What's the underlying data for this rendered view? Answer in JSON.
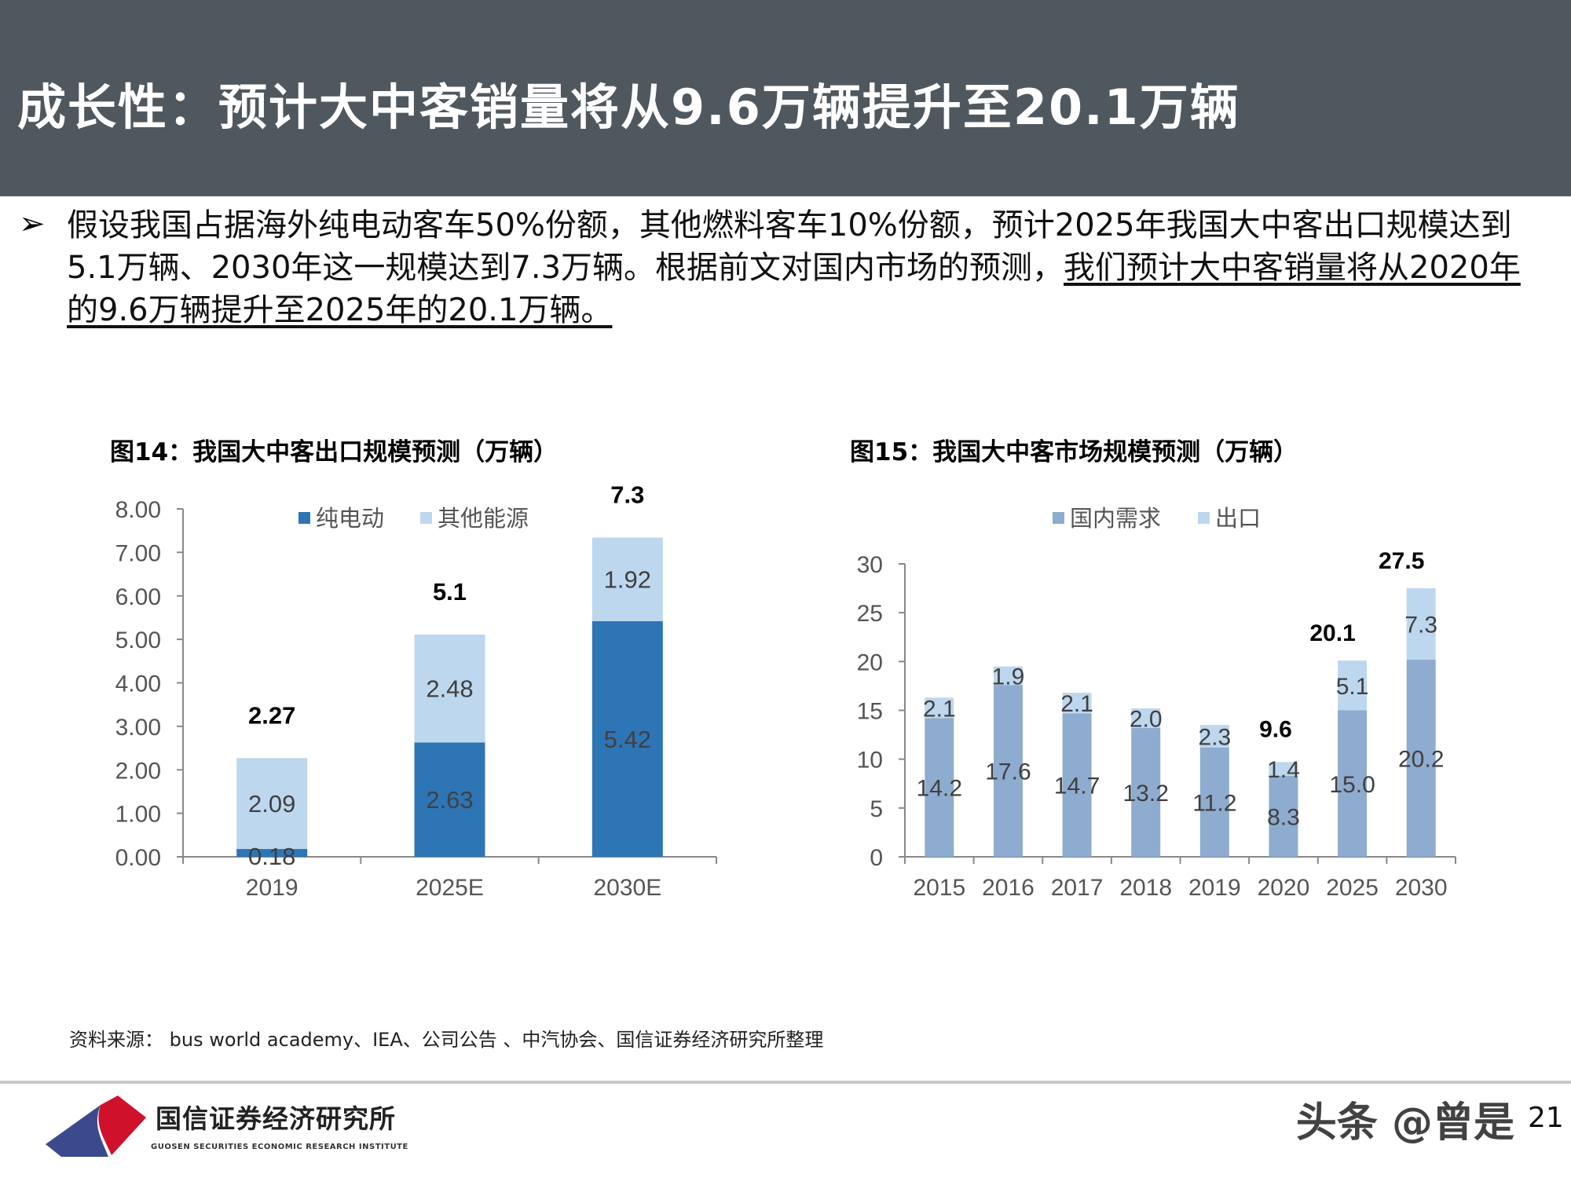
{
  "header": {
    "title": "成长性：预计大中客销量将从9.6万辆提升至20.1万辆"
  },
  "body": {
    "bullet_icon": "arrow-bullet-icon",
    "text_plain": "假设我国占据海外纯电动客车50%份额，其他燃料客车10%份额，预计2025年我国大中客出口规模达到5.1万辆、2030年这一规模达到7.3万辆。根据前文对国内市场的预测，",
    "text_underlined": "我们预计大中客销量将从2020年的9.6万辆提升至2025年的20.1万辆。"
  },
  "chart_data": [
    {
      "type": "bar",
      "stacked": true,
      "title": "图14：我国大中客出口规模预测（万辆）",
      "categories": [
        "2019",
        "2025E",
        "2030E"
      ],
      "series": [
        {
          "name": "纯电动",
          "color": "#2e75b6",
          "values": [
            0.18,
            2.63,
            5.42
          ],
          "labels": [
            "0.18",
            "2.63",
            "5.42"
          ]
        },
        {
          "name": "其他能源",
          "color": "#bdd7ee",
          "values": [
            2.09,
            2.48,
            1.92
          ],
          "labels": [
            "2.09",
            "2.48",
            "1.92"
          ]
        }
      ],
      "totals": [
        "2.27",
        "5.1",
        "7.3"
      ],
      "yticks": [
        "0.00",
        "1.00",
        "2.00",
        "3.00",
        "4.00",
        "5.00",
        "6.00",
        "7.00",
        "8.00"
      ],
      "ylim": [
        0,
        8
      ],
      "grid": false,
      "legend": "top"
    },
    {
      "type": "bar",
      "stacked": true,
      "title": "图15：我国大中客市场规模预测（万辆）",
      "categories": [
        "2015",
        "2016",
        "2017",
        "2018",
        "2019",
        "2020",
        "2025",
        "2030"
      ],
      "series": [
        {
          "name": "国内需求",
          "color": "#8eaccf",
          "values": [
            14.2,
            17.6,
            14.7,
            13.2,
            11.2,
            8.3,
            15.0,
            20.2
          ],
          "labels": [
            "14.2",
            "17.6",
            "14.7",
            "13.2",
            "11.2",
            "8.3",
            "15.0",
            "20.2"
          ]
        },
        {
          "name": "出口",
          "color": "#bdd7ee",
          "values": [
            2.1,
            1.9,
            2.1,
            2.0,
            2.3,
            1.4,
            5.1,
            7.3
          ],
          "labels": [
            "2.1",
            "1.9",
            "2.1",
            "2.0",
            "2.3",
            "1.4",
            "5.1",
            "7.3"
          ]
        }
      ],
      "totals": [
        null,
        null,
        null,
        null,
        null,
        "9.6",
        "20.1",
        "27.5"
      ],
      "yticks": [
        "0",
        "5",
        "10",
        "15",
        "20",
        "25",
        "30"
      ],
      "ylim": [
        0,
        30
      ],
      "grid": false,
      "legend": "top"
    }
  ],
  "source": "资料来源： bus world academy、IEA、公司公告 、中汽协会、国信证券经济研究所整理",
  "footer": {
    "logo_cn": "国信证券经济研究所",
    "logo_en": "GUOSEN SECURITIES ECONOMIC RESEARCH INSTITUTE",
    "watermark": "头条 @曾是",
    "page_number": "21"
  }
}
